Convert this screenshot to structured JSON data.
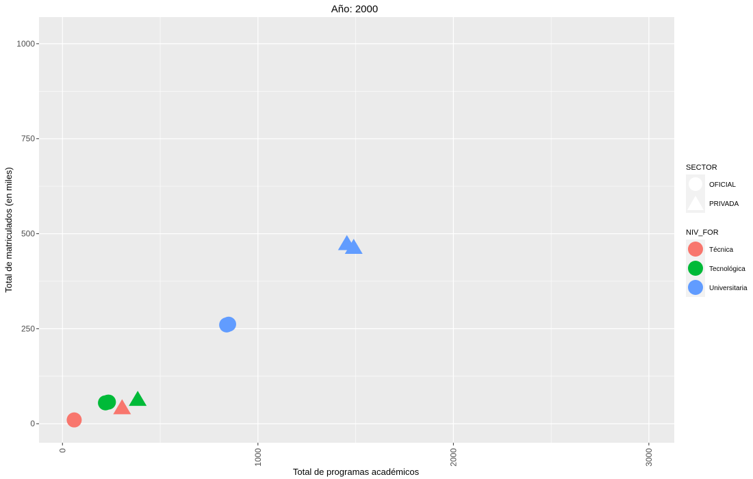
{
  "chart_data": {
    "type": "scatter",
    "title": "Año: 2000",
    "xlabel": "Total de programas académicos",
    "ylabel": "Total de matriculados (en miles)",
    "xlim": [
      -120,
      3130
    ],
    "ylim": [
      -50,
      1070
    ],
    "x_ticks": [
      0,
      1000,
      2000,
      3000
    ],
    "y_ticks": [
      0,
      250,
      500,
      750,
      1000
    ],
    "grid": true,
    "background": "#ebebeb",
    "legend_position": "right",
    "legends": {
      "shape": {
        "title": "SECTOR",
        "items": [
          {
            "label": "OFICIAL",
            "shape": "circle"
          },
          {
            "label": "PRIVADA",
            "shape": "triangle"
          }
        ]
      },
      "color": {
        "title": "NIV_FOR",
        "items": [
          {
            "label": "Técnica",
            "color": "#f8766d"
          },
          {
            "label": "Tecnológica",
            "color": "#00ba38"
          },
          {
            "label": "Universitaria",
            "color": "#619cff"
          }
        ]
      }
    },
    "points": [
      {
        "x": 60,
        "y": 10,
        "sector": "OFICIAL",
        "nivel": "Técnica"
      },
      {
        "x": 220,
        "y": 55,
        "sector": "OFICIAL",
        "nivel": "Tecnológica"
      },
      {
        "x": 235,
        "y": 57,
        "sector": "OFICIAL",
        "nivel": "Tecnológica"
      },
      {
        "x": 840,
        "y": 260,
        "sector": "OFICIAL",
        "nivel": "Universitaria"
      },
      {
        "x": 850,
        "y": 262,
        "sector": "OFICIAL",
        "nivel": "Universitaria"
      },
      {
        "x": 305,
        "y": 40,
        "sector": "PRIVADA",
        "nivel": "Técnica"
      },
      {
        "x": 385,
        "y": 62,
        "sector": "PRIVADA",
        "nivel": "Tecnológica"
      },
      {
        "x": 1455,
        "y": 472,
        "sector": "PRIVADA",
        "nivel": "Universitaria"
      },
      {
        "x": 1490,
        "y": 462,
        "sector": "PRIVADA",
        "nivel": "Universitaria"
      }
    ]
  }
}
